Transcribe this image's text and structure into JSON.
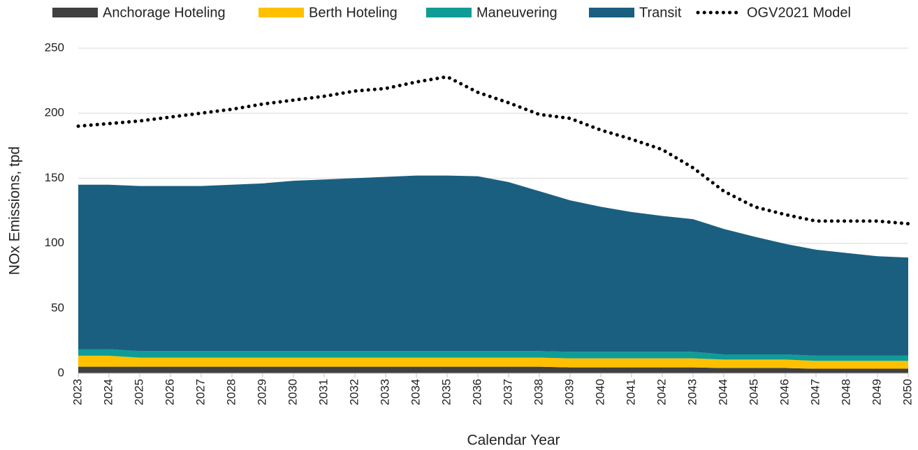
{
  "chart_data": {
    "type": "stacked_area",
    "x_label": "Calendar Year",
    "y_label": "NOx Emissions, tpd",
    "categories": [
      "2023",
      "2024",
      "2025",
      "2026",
      "2027",
      "2028",
      "2029",
      "2030",
      "2031",
      "2032",
      "2033",
      "2034",
      "2035",
      "2036",
      "2037",
      "2038",
      "2039",
      "2040",
      "2041",
      "2042",
      "2043",
      "2044",
      "2045",
      "2046",
      "2047",
      "2048",
      "2049",
      "2050"
    ],
    "series": [
      {
        "name": "Anchorage Hoteling",
        "color": "#404040",
        "values": [
          5,
          5,
          5,
          5,
          5,
          5,
          5,
          5,
          5,
          5,
          5,
          5,
          5,
          5,
          5,
          5,
          4.5,
          4.5,
          4.5,
          4.5,
          4.5,
          4,
          4,
          4,
          3.5,
          3.5,
          3.5,
          3.5
        ]
      },
      {
        "name": "Berth Hoteling",
        "color": "#ffc000",
        "values": [
          8.5,
          8.5,
          7,
          7,
          7,
          7,
          7,
          7,
          7,
          7,
          7,
          7,
          7,
          7,
          7,
          7,
          7,
          7,
          7,
          7,
          7,
          6.5,
          6.5,
          6.5,
          6,
          6,
          6,
          6
        ]
      },
      {
        "name": "Maneuvering",
        "color": "#0f9c97",
        "values": [
          5,
          5,
          5,
          5,
          5,
          5,
          5,
          5,
          5,
          5,
          5,
          5,
          5,
          5,
          5,
          5,
          5,
          5,
          5,
          5,
          5,
          4,
          4,
          4,
          4,
          4,
          4,
          4
        ]
      },
      {
        "name": "Transit",
        "color": "#1a5f80",
        "values": [
          126.5,
          126.5,
          127,
          127,
          127,
          128,
          129,
          131,
          132,
          133,
          134,
          135,
          135,
          134.5,
          130,
          123,
          116.5,
          111.5,
          107.5,
          104.5,
          102,
          96.5,
          90.5,
          85,
          81.5,
          79,
          76.5,
          75.5
        ]
      },
      {
        "name": "OGV2021 Model",
        "color": "#000000",
        "type": "line",
        "dotted": true,
        "values": [
          190,
          192,
          194,
          197,
          200,
          203,
          207,
          210,
          213,
          217,
          219,
          224,
          228,
          216,
          208,
          199,
          196,
          187,
          180,
          172,
          158,
          140,
          128,
          122,
          117,
          117,
          117,
          115
        ]
      }
    ],
    "ylim": [
      0,
      250
    ],
    "yticks": [
      0,
      50,
      100,
      150,
      200,
      250
    ],
    "grid": true,
    "legend": "top"
  }
}
